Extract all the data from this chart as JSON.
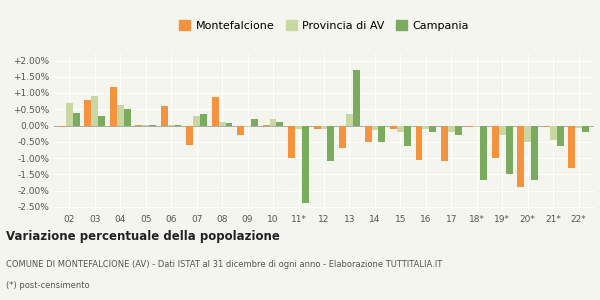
{
  "years": [
    "02",
    "03",
    "04",
    "05",
    "06",
    "07",
    "08",
    "09",
    "10",
    "11*",
    "12",
    "13",
    "14",
    "15",
    "16",
    "17",
    "18*",
    "19*",
    "20*",
    "21*",
    "22*"
  ],
  "montefalcione": [
    -0.0005,
    0.008,
    0.012,
    0.0001,
    0.006,
    -0.006,
    0.0088,
    -0.003,
    0.0001,
    -0.01,
    -0.001,
    -0.007,
    -0.005,
    -0.001,
    -0.0105,
    -0.011,
    -0.0005,
    -0.01,
    -0.019,
    -0.0005,
    -0.013
  ],
  "provincia_av": [
    0.007,
    0.0092,
    0.0062,
    0.0001,
    0.0001,
    0.003,
    0.001,
    -0.0005,
    0.002,
    -0.001,
    -0.001,
    0.0035,
    -0.0015,
    -0.002,
    -0.001,
    -0.002,
    -0.0005,
    -0.003,
    -0.005,
    -0.0045,
    -0.0008
  ],
  "campania": [
    0.004,
    0.003,
    0.005,
    0.0001,
    0.0001,
    0.0035,
    0.0008,
    0.002,
    0.001,
    -0.0238,
    -0.0108,
    0.017,
    -0.0052,
    -0.0062,
    -0.002,
    -0.003,
    -0.0168,
    -0.015,
    -0.0168,
    -0.0062,
    -0.002
  ],
  "color_montefalcione": "#f5923e",
  "color_provincia": "#c8d8a0",
  "color_campania": "#7aab5e",
  "title": "Variazione percentuale della popolazione",
  "subtitle1": "COMUNE DI MONTEFALCIONE (AV) - Dati ISTAT al 31 dicembre di ogni anno - Elaborazione TUTTITALIA.IT",
  "subtitle2": "(*) post-censimento",
  "ylim": [
    -0.026,
    0.022
  ],
  "ytick_vals": [
    -0.025,
    -0.02,
    -0.015,
    -0.01,
    -0.005,
    0.0,
    0.005,
    0.01,
    0.015,
    0.02
  ],
  "ytick_labels": [
    "-2.50%",
    "-2.00%",
    "-1.50%",
    "-1.00%",
    "-0.50%",
    "0.00%",
    "+0.50%",
    "+1.00%",
    "+1.50%",
    "+2.00%"
  ],
  "bg_color": "#f5f5f0",
  "bar_width": 0.27
}
